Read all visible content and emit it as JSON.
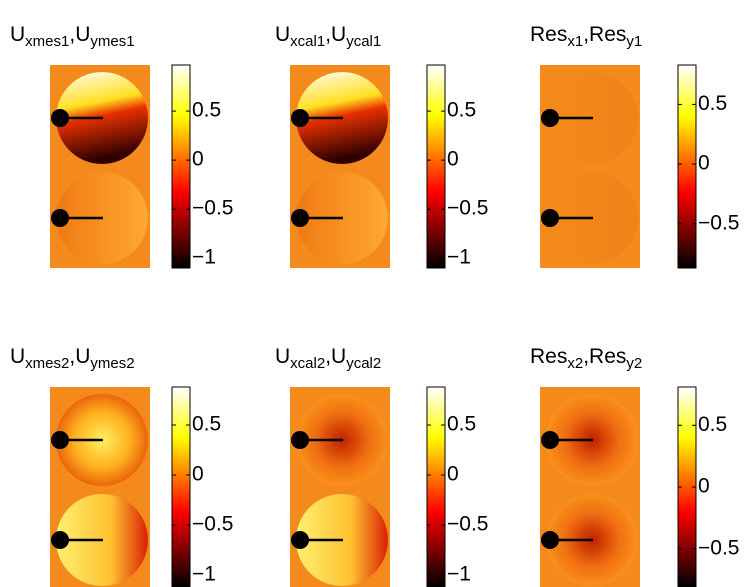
{
  "chart_data": [
    {
      "type": "heatmap",
      "title": [
        "U",
        "xmes1",
        ",U",
        "ymes1"
      ],
      "ylim": [
        -1.1,
        0.97
      ],
      "yticks": [
        0.5,
        0,
        {
          "value": -0.5,
          "label": "−0.5"
        },
        {
          "value": -1,
          "label": "−1"
        }
      ]
    },
    {
      "type": "heatmap",
      "title": [
        "U",
        "xcal1",
        ",U",
        "ycal1"
      ],
      "ylim": [
        -1.1,
        0.97
      ],
      "yticks": [
        0.5,
        0,
        {
          "value": -0.5,
          "label": "−0.5"
        },
        {
          "value": -1,
          "label": "−1"
        }
      ]
    },
    {
      "type": "heatmap",
      "title": [
        "Res",
        "x1",
        ",Res",
        "y1"
      ],
      "ylim": [
        -0.87,
        0.83
      ],
      "yticks": [
        0.5,
        0,
        {
          "value": -0.5,
          "label": "−0.5"
        }
      ]
    },
    {
      "type": "heatmap",
      "title": [
        "U",
        "xmes2",
        ",U",
        "ymes2"
      ],
      "ylim": [
        -1.12,
        0.88
      ],
      "yticks": [
        0.5,
        0,
        {
          "value": -0.5,
          "label": "−0.5"
        },
        {
          "value": -1,
          "label": "−1"
        }
      ]
    },
    {
      "type": "heatmap",
      "title": [
        "U",
        "xcal2",
        ",U",
        "ycal2"
      ],
      "ylim": [
        -1.12,
        0.88
      ],
      "yticks": [
        0.5,
        0,
        {
          "value": -0.5,
          "label": "−0.5"
        },
        {
          "value": -1,
          "label": "−1"
        }
      ]
    },
    {
      "type": "heatmap",
      "title": [
        "Res",
        "x2",
        ",Res",
        "y2"
      ],
      "ylim": [
        -0.81,
        0.81
      ],
      "yticks": [
        0.5,
        0,
        {
          "value": -0.5,
          "label": "−0.5"
        }
      ]
    }
  ]
}
